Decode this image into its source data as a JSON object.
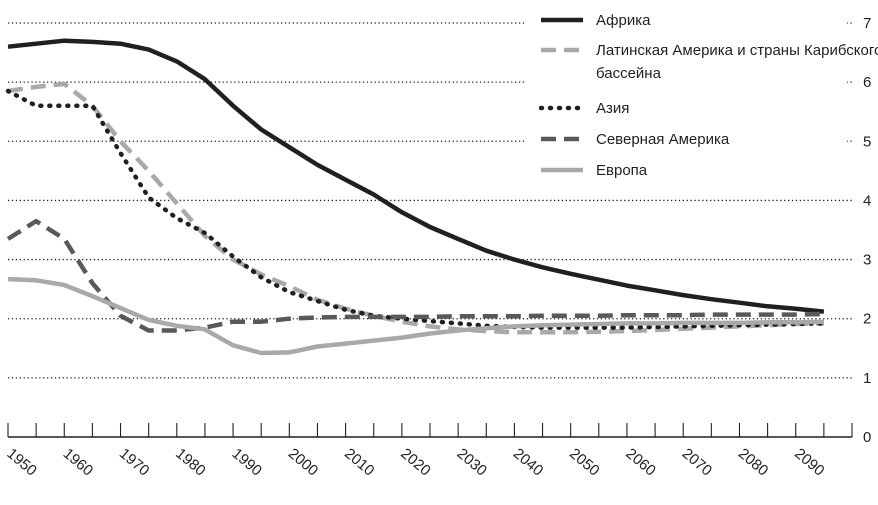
{
  "chart_data": {
    "type": "line",
    "title": "",
    "xlabel": "",
    "ylabel": "",
    "ylim": [
      0,
      7
    ],
    "yticks": [
      "0",
      "1",
      "2",
      "3",
      "4",
      "5",
      "6",
      "7"
    ],
    "xticks": [
      "1950",
      "1960",
      "1970",
      "1980",
      "1990",
      "2000",
      "2010",
      "2020",
      "2030",
      "2040",
      "2050",
      "2060",
      "2070",
      "2080",
      "2090"
    ],
    "grid": "horizontal dotted",
    "legend_position": "top-right",
    "series": [
      {
        "name": "Африка",
        "color": "#231f20",
        "style": "solid",
        "x": [
          1950,
          1955,
          1960,
          1965,
          1970,
          1975,
          1980,
          1985,
          1990,
          1995,
          2000,
          2005,
          2010,
          2015,
          2020,
          2025,
          2030,
          2035,
          2040,
          2045,
          2050,
          2055,
          2060,
          2065,
          2070,
          2075,
          2080,
          2085,
          2090,
          2095
        ],
        "values": [
          6.6,
          6.65,
          6.7,
          6.68,
          6.65,
          6.55,
          6.35,
          6.05,
          5.6,
          5.2,
          4.9,
          4.6,
          4.35,
          4.1,
          3.8,
          3.55,
          3.35,
          3.15,
          3.0,
          2.87,
          2.76,
          2.66,
          2.56,
          2.48,
          2.4,
          2.33,
          2.27,
          2.21,
          2.17,
          2.12
        ]
      },
      {
        "name": "Латинская Америка и страны Карибского бассейна",
        "color": "#a7a9ac",
        "style": "dashed",
        "x": [
          1950,
          1955,
          1960,
          1965,
          1970,
          1975,
          1980,
          1985,
          1990,
          1995,
          2000,
          2005,
          2010,
          2015,
          2020,
          2025,
          2030,
          2035,
          2040,
          2045,
          2050,
          2055,
          2060,
          2065,
          2070,
          2075,
          2080,
          2085,
          2090,
          2095
        ],
        "values": [
          5.85,
          5.92,
          5.97,
          5.6,
          5.0,
          4.5,
          3.95,
          3.4,
          3.0,
          2.75,
          2.55,
          2.32,
          2.17,
          2.05,
          1.95,
          1.87,
          1.82,
          1.79,
          1.77,
          1.77,
          1.77,
          1.78,
          1.79,
          1.81,
          1.83,
          1.85,
          1.87,
          1.89,
          1.91,
          1.92
        ]
      },
      {
        "name": "Азия",
        "color": "#231f20",
        "style": "dotted",
        "x": [
          1950,
          1955,
          1960,
          1965,
          1970,
          1975,
          1980,
          1985,
          1990,
          1995,
          2000,
          2005,
          2010,
          2015,
          2020,
          2025,
          2030,
          2035,
          2040,
          2045,
          2050,
          2055,
          2060,
          2065,
          2070,
          2075,
          2080,
          2085,
          2090,
          2095
        ],
        "values": [
          5.85,
          5.6,
          5.6,
          5.6,
          4.8,
          4.05,
          3.7,
          3.45,
          3.05,
          2.7,
          2.45,
          2.3,
          2.15,
          2.05,
          2.0,
          1.96,
          1.92,
          1.88,
          1.86,
          1.85,
          1.85,
          1.85,
          1.85,
          1.86,
          1.87,
          1.88,
          1.89,
          1.9,
          1.91,
          1.92
        ]
      },
      {
        "name": "Северная Америка",
        "color": "#58595b",
        "style": "dashed",
        "x": [
          1950,
          1955,
          1960,
          1965,
          1970,
          1975,
          1980,
          1985,
          1990,
          1995,
          2000,
          2005,
          2010,
          2015,
          2020,
          2025,
          2030,
          2035,
          2040,
          2045,
          2050,
          2055,
          2060,
          2065,
          2070,
          2075,
          2080,
          2085,
          2090,
          2095
        ],
        "values": [
          3.35,
          3.65,
          3.35,
          2.6,
          2.05,
          1.8,
          1.8,
          1.85,
          1.95,
          1.95,
          2.0,
          2.02,
          2.03,
          2.03,
          2.03,
          2.03,
          2.04,
          2.04,
          2.04,
          2.05,
          2.05,
          2.05,
          2.06,
          2.06,
          2.06,
          2.07,
          2.07,
          2.07,
          2.07,
          2.08
        ]
      },
      {
        "name": "Европа",
        "color": "#a7a9ac",
        "style": "solid",
        "x": [
          1950,
          1955,
          1960,
          1965,
          1970,
          1975,
          1980,
          1985,
          1990,
          1995,
          2000,
          2005,
          2010,
          2015,
          2020,
          2025,
          2030,
          2035,
          2040,
          2045,
          2050,
          2055,
          2060,
          2065,
          2070,
          2075,
          2080,
          2085,
          2090,
          2095
        ],
        "values": [
          2.67,
          2.65,
          2.57,
          2.38,
          2.18,
          1.98,
          1.88,
          1.82,
          1.55,
          1.42,
          1.43,
          1.53,
          1.58,
          1.63,
          1.68,
          1.75,
          1.8,
          1.84,
          1.87,
          1.89,
          1.9,
          1.91,
          1.92,
          1.92,
          1.93,
          1.93,
          1.93,
          1.94,
          1.94,
          1.95
        ]
      }
    ]
  }
}
